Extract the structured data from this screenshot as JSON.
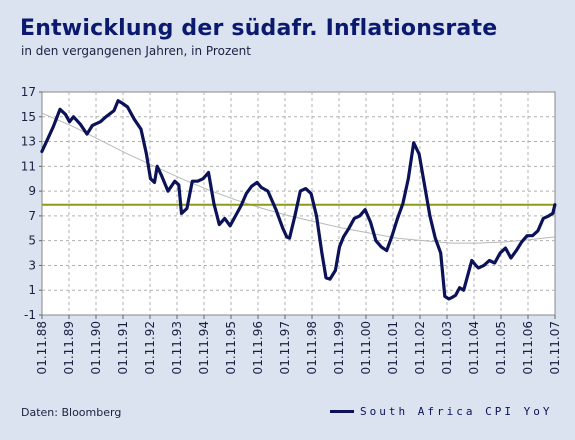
{
  "header": {
    "title": "Entwicklung der südafr. Inflationsrate",
    "subtitle": "in den vergangenen Jahren, in Prozent"
  },
  "footer": {
    "source": "Daten: Bloomberg"
  },
  "colors": {
    "background": "#dbe3f0",
    "plot_background": "#ffffff",
    "series": "#0b1257",
    "reference_line": "#8c9a1e",
    "trend_line": "#b8b8b8",
    "grid": "#b0b0b0"
  },
  "chart_data": {
    "type": "line",
    "title": "Entwicklung der südafr. Inflationsrate",
    "subtitle": "in den vergangenen Jahren, in Prozent",
    "ylim": [
      -1,
      17
    ],
    "yticks": [
      "17",
      "15",
      "13",
      "11",
      "9",
      "7",
      "5",
      "3",
      "1",
      "-1"
    ],
    "ytick_values": [
      17,
      15,
      13,
      11,
      9,
      7,
      5,
      3,
      1,
      -1
    ],
    "xlim": [
      1988.833,
      2007.833
    ],
    "xticks": [
      "01.11.88",
      "01.11.89",
      "01.11.90",
      "01.11.91",
      "01.11.92",
      "01.11.93",
      "01.11.94",
      "01.11.95",
      "01.11.96",
      "01.11.97",
      "01.11.98",
      "01.11.99",
      "01.11.00",
      "01.11.01",
      "01.11.02",
      "01.11.03",
      "01.11.04",
      "01.11.05",
      "01.11.06",
      "01.11.07"
    ],
    "grid": "vertical dashed at each tick, horizontal dashed",
    "legend": "bottom-right",
    "reference_line": {
      "y": 7.9
    },
    "series": [
      {
        "name": "South Africa CPI YoY",
        "points": [
          [
            1988.83,
            12.2
          ],
          [
            1989.0,
            13.0
          ],
          [
            1989.25,
            14.2
          ],
          [
            1989.5,
            15.6
          ],
          [
            1989.7,
            15.2
          ],
          [
            1989.85,
            14.6
          ],
          [
            1990.0,
            15.0
          ],
          [
            1990.25,
            14.4
          ],
          [
            1990.5,
            13.6
          ],
          [
            1990.7,
            14.3
          ],
          [
            1991.0,
            14.6
          ],
          [
            1991.2,
            15.0
          ],
          [
            1991.5,
            15.5
          ],
          [
            1991.65,
            16.3
          ],
          [
            1991.8,
            16.1
          ],
          [
            1992.0,
            15.8
          ],
          [
            1992.25,
            14.8
          ],
          [
            1992.5,
            14.0
          ],
          [
            1992.7,
            12.0
          ],
          [
            1992.85,
            10.0
          ],
          [
            1993.0,
            9.7
          ],
          [
            1993.1,
            11.0
          ],
          [
            1993.25,
            10.3
          ],
          [
            1993.5,
            9.0
          ],
          [
            1993.75,
            9.8
          ],
          [
            1993.9,
            9.5
          ],
          [
            1994.0,
            7.2
          ],
          [
            1994.2,
            7.6
          ],
          [
            1994.4,
            9.8
          ],
          [
            1994.6,
            9.8
          ],
          [
            1994.8,
            10.0
          ],
          [
            1995.0,
            10.5
          ],
          [
            1995.2,
            8.0
          ],
          [
            1995.4,
            6.3
          ],
          [
            1995.6,
            6.8
          ],
          [
            1995.8,
            6.2
          ],
          [
            1996.0,
            7.0
          ],
          [
            1996.2,
            7.8
          ],
          [
            1996.4,
            8.8
          ],
          [
            1996.6,
            9.4
          ],
          [
            1996.8,
            9.7
          ],
          [
            1996.95,
            9.3
          ],
          [
            1997.2,
            9.0
          ],
          [
            1997.5,
            7.5
          ],
          [
            1997.75,
            6.0
          ],
          [
            1997.9,
            5.3
          ],
          [
            1998.0,
            5.2
          ],
          [
            1998.2,
            7.0
          ],
          [
            1998.4,
            9.0
          ],
          [
            1998.6,
            9.2
          ],
          [
            1998.8,
            8.8
          ],
          [
            1999.0,
            7.0
          ],
          [
            1999.2,
            4.0
          ],
          [
            1999.35,
            2.0
          ],
          [
            1999.5,
            1.9
          ],
          [
            1999.7,
            2.6
          ],
          [
            1999.85,
            4.5
          ],
          [
            2000.0,
            5.3
          ],
          [
            2000.2,
            6.0
          ],
          [
            2000.4,
            6.8
          ],
          [
            2000.6,
            7.0
          ],
          [
            2000.8,
            7.5
          ],
          [
            2001.0,
            6.5
          ],
          [
            2001.2,
            5.0
          ],
          [
            2001.4,
            4.5
          ],
          [
            2001.6,
            4.2
          ],
          [
            2001.8,
            5.4
          ],
          [
            2002.0,
            6.8
          ],
          [
            2002.2,
            8.0
          ],
          [
            2002.4,
            10.0
          ],
          [
            2002.6,
            12.9
          ],
          [
            2002.8,
            12.0
          ],
          [
            2003.0,
            9.5
          ],
          [
            2003.2,
            7.0
          ],
          [
            2003.4,
            5.2
          ],
          [
            2003.6,
            4.0
          ],
          [
            2003.75,
            0.5
          ],
          [
            2003.9,
            0.3
          ],
          [
            2004.0,
            0.4
          ],
          [
            2004.15,
            0.6
          ],
          [
            2004.3,
            1.2
          ],
          [
            2004.45,
            1.0
          ],
          [
            2004.6,
            2.2
          ],
          [
            2004.75,
            3.4
          ],
          [
            2004.9,
            3.0
          ],
          [
            2005.0,
            2.8
          ],
          [
            2005.2,
            3.0
          ],
          [
            2005.4,
            3.4
          ],
          [
            2005.6,
            3.2
          ],
          [
            2005.8,
            4.0
          ],
          [
            2006.0,
            4.4
          ],
          [
            2006.2,
            3.6
          ],
          [
            2006.4,
            4.2
          ],
          [
            2006.6,
            4.9
          ],
          [
            2006.8,
            5.4
          ],
          [
            2007.0,
            5.4
          ],
          [
            2007.2,
            5.8
          ],
          [
            2007.4,
            6.8
          ],
          [
            2007.6,
            7.0
          ],
          [
            2007.75,
            7.2
          ],
          [
            2007.83,
            7.9
          ]
        ]
      }
    ],
    "trend_points": [
      [
        1988.83,
        15.3
      ],
      [
        1990.0,
        14.2
      ],
      [
        1991.0,
        13.1
      ],
      [
        1992.0,
        12.0
      ],
      [
        1993.0,
        11.0
      ],
      [
        1994.0,
        10.0
      ],
      [
        1995.0,
        9.1
      ],
      [
        1996.0,
        8.3
      ],
      [
        1997.0,
        7.6
      ],
      [
        1998.0,
        7.0
      ],
      [
        1999.0,
        6.5
      ],
      [
        2000.0,
        6.0
      ],
      [
        2001.0,
        5.6
      ],
      [
        2002.0,
        5.2
      ],
      [
        2003.0,
        5.0
      ],
      [
        2004.0,
        4.8
      ],
      [
        2005.0,
        4.8
      ],
      [
        2006.0,
        4.9
      ],
      [
        2007.0,
        5.1
      ],
      [
        2007.83,
        5.3
      ]
    ]
  },
  "legend": {
    "series_label": "South Africa CPI YoY"
  }
}
